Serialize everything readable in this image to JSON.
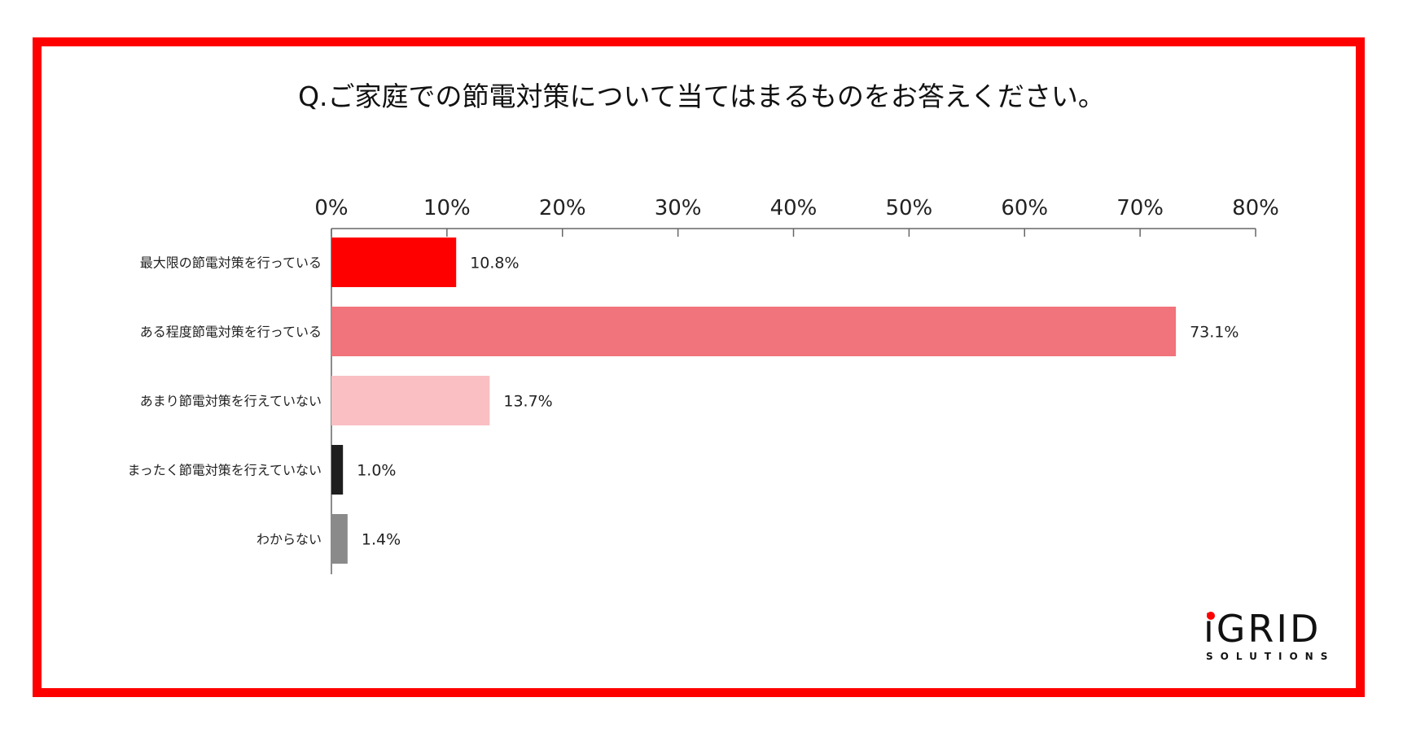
{
  "chart_data": {
    "type": "bar",
    "orientation": "horizontal",
    "title": "Q.ご家庭での節電対策について当てはまるものをお答えください。",
    "categories": [
      "最大限の節電対策を行っている",
      "ある程度節電対策を行っている",
      "あまり節電対策を行えていない",
      "まったく節電対策を行えていない",
      "わからない"
    ],
    "values": [
      10.8,
      73.1,
      13.7,
      1.0,
      1.4
    ],
    "value_labels": [
      "10.8%",
      "73.1%",
      "13.7%",
      "1.0%",
      "1.4%"
    ],
    "bar_colors": [
      "#ff0000",
      "#f1737b",
      "#f9bfc2",
      "#1e1e1e",
      "#8a8a8a"
    ],
    "xlim": [
      0,
      80
    ],
    "x_ticks": [
      0,
      10,
      20,
      30,
      40,
      50,
      60,
      70,
      80
    ],
    "x_tick_labels": [
      "0%",
      "10%",
      "20%",
      "30%",
      "40%",
      "50%",
      "60%",
      "70%",
      "80%"
    ],
    "axis_position": "top",
    "grid": false,
    "legend": "none",
    "frame_color": "#ff0000"
  },
  "logo": {
    "main": "iGRID",
    "sub": "SOLUTIONS"
  }
}
